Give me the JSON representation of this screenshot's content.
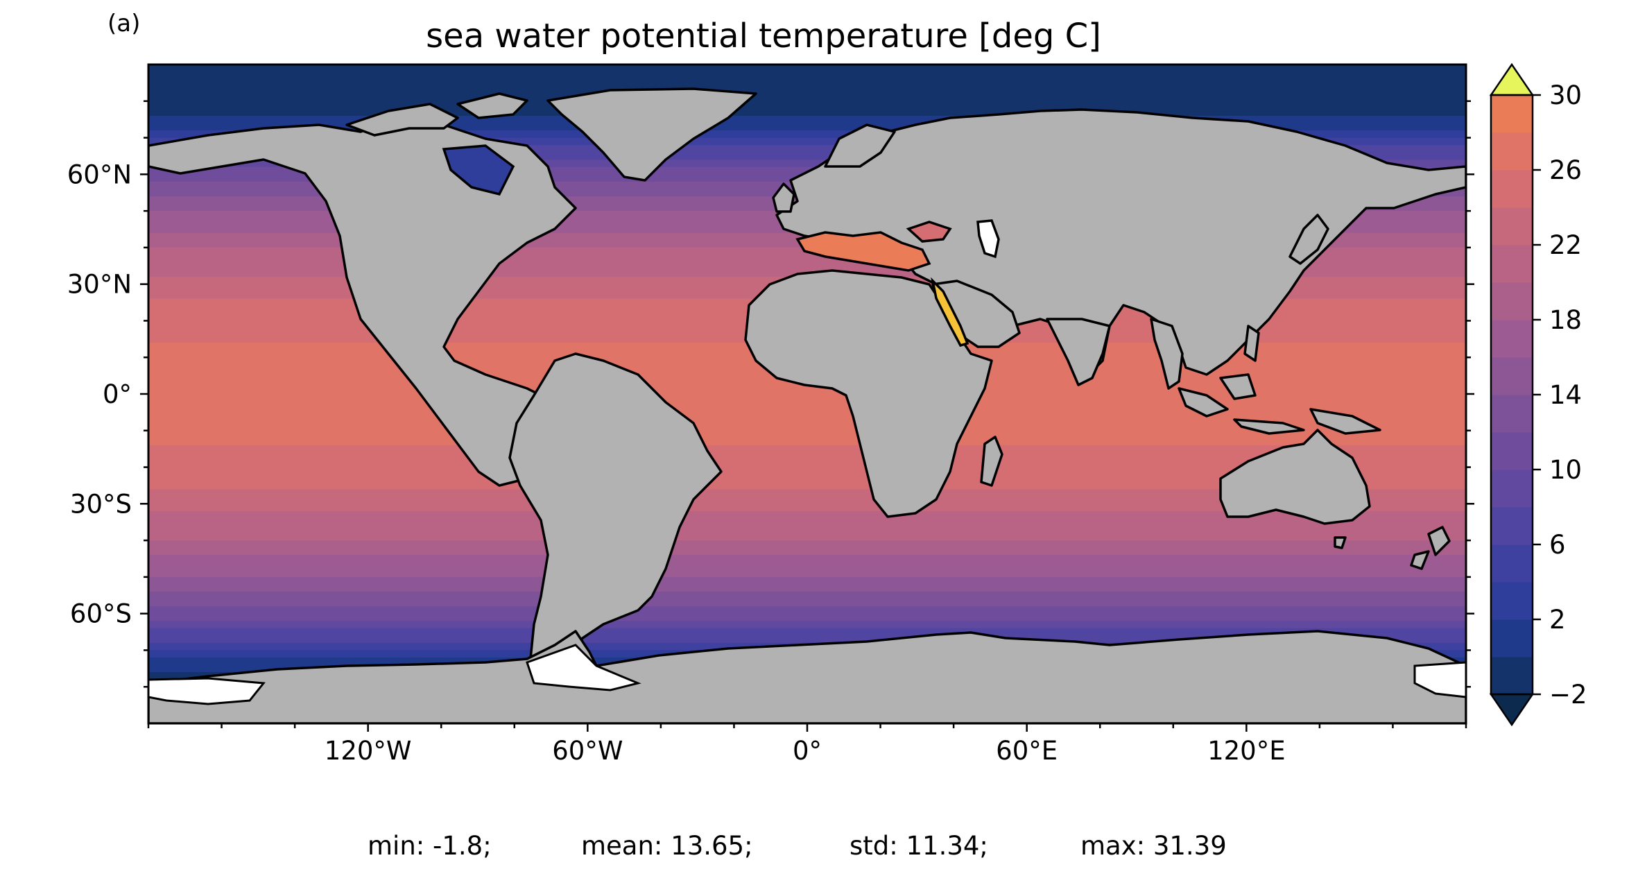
{
  "panel_label": "(a)",
  "title": "sea water potential temperature [deg C]",
  "map": {
    "projection": "plate-carree",
    "lon_range": [
      -180,
      180
    ],
    "lat_range": [
      -90,
      90
    ],
    "land_color": "#b2b2b2",
    "colormap": "thermal",
    "colormap_colors": [
      "#0c2a4d",
      "#14336a",
      "#1f3a8a",
      "#2f3d9b",
      "#3f41a0",
      "#5045a0",
      "#60499e",
      "#6f4d9c",
      "#7e5299",
      "#8d5796",
      "#9c5b92",
      "#ab608c",
      "#b96485",
      "#c7697c",
      "#d46e72",
      "#e07466",
      "#eb7c58",
      "#f2864a",
      "#f7933e",
      "#f9a235",
      "#f9b233",
      "#f6c338",
      "#f2d43f",
      "#eee548",
      "#e7f55c"
    ]
  },
  "x_ticks": [
    {
      "lon": -120,
      "label": "120°W"
    },
    {
      "lon": -60,
      "label": "60°W"
    },
    {
      "lon": 0,
      "label": "0°"
    },
    {
      "lon": 60,
      "label": "60°E"
    },
    {
      "lon": 120,
      "label": "120°E"
    }
  ],
  "y_ticks": [
    {
      "lat": 60,
      "label": "60°N"
    },
    {
      "lat": 30,
      "label": "30°N"
    },
    {
      "lat": 0,
      "label": "0°"
    },
    {
      "lat": -30,
      "label": "30°S"
    },
    {
      "lat": -60,
      "label": "60°S"
    }
  ],
  "colorbar": {
    "min": -2,
    "max": 30,
    "step": 2,
    "extend": "both",
    "ticks": [
      {
        "value": 30,
        "label": "30"
      },
      {
        "value": 26,
        "label": "26"
      },
      {
        "value": 22,
        "label": "22"
      },
      {
        "value": 18,
        "label": "18"
      },
      {
        "value": 14,
        "label": "14"
      },
      {
        "value": 10,
        "label": "10"
      },
      {
        "value": 6,
        "label": "6"
      },
      {
        "value": 2,
        "label": "2"
      },
      {
        "value": -2,
        "label": "−2"
      }
    ]
  },
  "stats": {
    "min": "min: -1.8;",
    "mean": "mean: 13.65;",
    "std": "std: 11.34;",
    "max": "max: 31.39"
  }
}
